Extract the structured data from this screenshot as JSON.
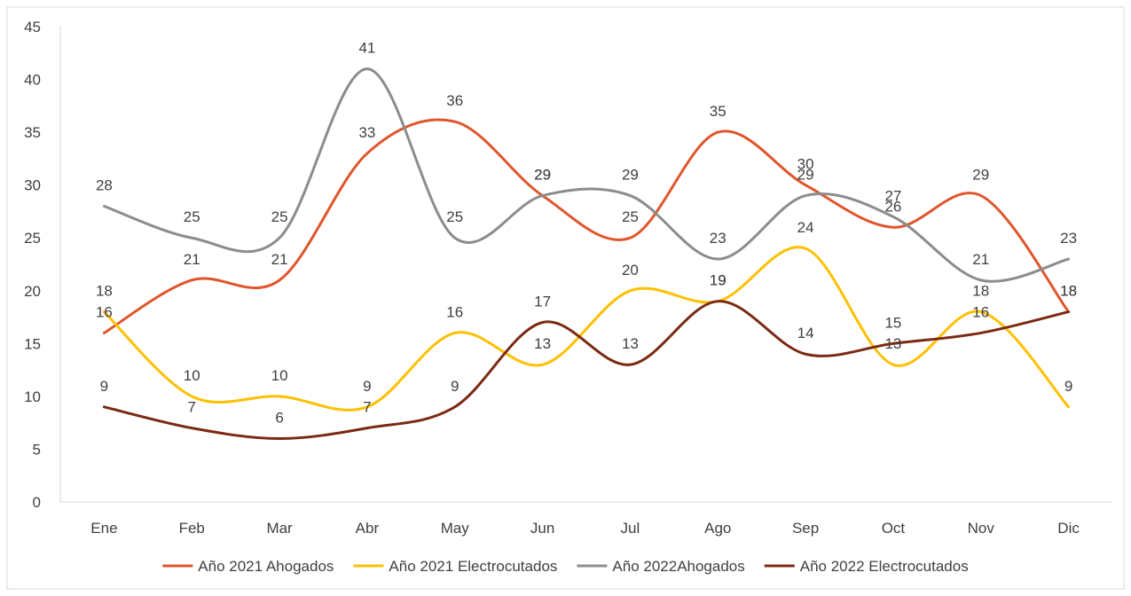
{
  "chart_data": {
    "type": "line",
    "title": "",
    "xlabel": "",
    "ylabel": "",
    "categories": [
      "Ene",
      "Feb",
      "Mar",
      "Abr",
      "May",
      "Jun",
      "Jul",
      "Ago",
      "Sep",
      "Oct",
      "Nov",
      "Dic"
    ],
    "ylim": [
      0,
      45
    ],
    "yticks": [
      0,
      5,
      10,
      15,
      20,
      25,
      30,
      35,
      40,
      45
    ],
    "grid": false,
    "smooth": true,
    "data_labels": true,
    "legend_position": "bottom",
    "series": [
      {
        "name": "Año 2021 Ahogados",
        "color": "#E0552B",
        "values": [
          16,
          21,
          21,
          33,
          36,
          29,
          25,
          35,
          30,
          26,
          29,
          18
        ]
      },
      {
        "name": "Año 2021 Electrocutados",
        "color": "#FFC000",
        "values": [
          18,
          10,
          10,
          9,
          16,
          13,
          20,
          19,
          24,
          13,
          18,
          9
        ]
      },
      {
        "name": "Año 2022Ahogados",
        "color": "#8C8C8C",
        "values": [
          28,
          25,
          25,
          41,
          25,
          29,
          29,
          23,
          29,
          27,
          21,
          23
        ]
      },
      {
        "name": "Año 2022 Electrocutados",
        "color": "#7B2A12",
        "values": [
          9,
          7,
          6,
          7,
          9,
          17,
          13,
          19,
          14,
          15,
          16,
          18
        ]
      }
    ]
  }
}
